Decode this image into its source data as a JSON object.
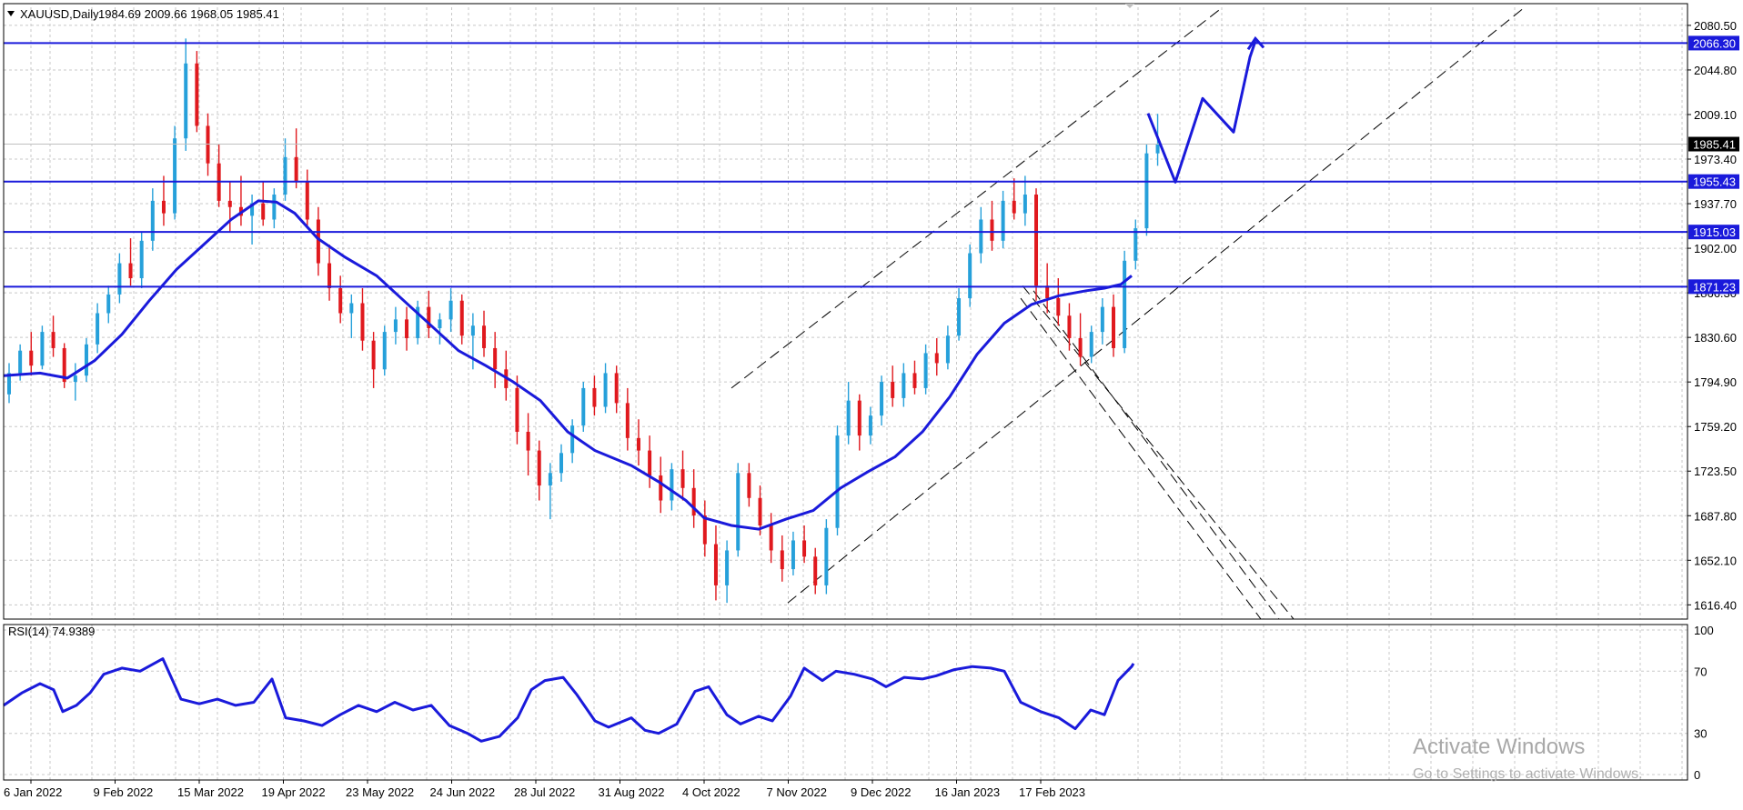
{
  "header": {
    "symbol": "XAUUSD,Daily",
    "ohlc": "1984.69 2009.66 1968.05 1985.41"
  },
  "rsi_header": "RSI(14) 74.9389",
  "watermark": {
    "title": "Activate Windows",
    "subtitle": "Go to Settings to activate Windows."
  },
  "colors": {
    "bull": "#26a0da",
    "bear": "#e0191e",
    "line": "#1a1adb",
    "grid": "#c8c8c8",
    "current_price_bg": "#000000",
    "level_bg": "#1a1adb"
  },
  "chart_data": [
    {
      "type": "candlestick",
      "name": "XAUUSD,Daily",
      "ylim": [
        1605,
        2095
      ],
      "y_ticks": [
        1616.4,
        1652.1,
        1687.8,
        1723.5,
        1759.2,
        1794.9,
        1830.6,
        1866.3,
        1902.0,
        1937.7,
        1973.4,
        2009.1,
        2044.8,
        2080.5
      ],
      "x_ticks": [
        "6 Jan 2022",
        "9 Feb 2022",
        "15 Mar 2022",
        "19 Apr 2022",
        "23 May 2022",
        "24 Jun 2022",
        "28 Jul 2022",
        "31 Aug 2022",
        "4 Oct 2022",
        "7 Nov 2022",
        "9 Dec 2022",
        "16 Jan 2023",
        "17 Feb 2023"
      ],
      "current_price": 1985.41,
      "horizontal_levels": [
        2066.3,
        1955.43,
        1915.03,
        1871.23
      ],
      "ma_path": [
        [
          0,
          1800
        ],
        [
          40,
          1802
        ],
        [
          70,
          1798
        ],
        [
          100,
          1812
        ],
        [
          130,
          1833
        ],
        [
          160,
          1860
        ],
        [
          190,
          1885
        ],
        [
          220,
          1905
        ],
        [
          250,
          1925
        ],
        [
          280,
          1940
        ],
        [
          300,
          1939
        ],
        [
          320,
          1930
        ],
        [
          345,
          1910
        ],
        [
          375,
          1895
        ],
        [
          410,
          1880
        ],
        [
          440,
          1860
        ],
        [
          470,
          1840
        ],
        [
          500,
          1820
        ],
        [
          530,
          1808
        ],
        [
          560,
          1795
        ],
        [
          590,
          1780
        ],
        [
          620,
          1755
        ],
        [
          650,
          1740
        ],
        [
          690,
          1728
        ],
        [
          720,
          1715
        ],
        [
          750,
          1700
        ],
        [
          770,
          1686
        ],
        [
          800,
          1680
        ],
        [
          830,
          1677
        ],
        [
          860,
          1685
        ],
        [
          890,
          1692
        ],
        [
          920,
          1710
        ],
        [
          950,
          1723
        ],
        [
          980,
          1735
        ],
        [
          1010,
          1755
        ],
        [
          1040,
          1783
        ],
        [
          1070,
          1817
        ],
        [
          1100,
          1842
        ],
        [
          1130,
          1857
        ],
        [
          1160,
          1864
        ],
        [
          1190,
          1868
        ],
        [
          1210,
          1870
        ],
        [
          1228,
          1873
        ],
        [
          1240,
          1880
        ]
      ],
      "candles": [
        [
          1785,
          1810,
          1778,
          1802
        ],
        [
          1802,
          1825,
          1796,
          1820
        ],
        [
          1820,
          1835,
          1800,
          1808
        ],
        [
          1808,
          1840,
          1805,
          1835
        ],
        [
          1835,
          1848,
          1815,
          1822
        ],
        [
          1822,
          1826,
          1790,
          1795
        ],
        [
          1795,
          1810,
          1780,
          1800
        ],
        [
          1800,
          1830,
          1795,
          1825
        ],
        [
          1825,
          1858,
          1818,
          1850
        ],
        [
          1850,
          1872,
          1842,
          1865
        ],
        [
          1865,
          1898,
          1858,
          1890
        ],
        [
          1890,
          1910,
          1872,
          1878
        ],
        [
          1878,
          1915,
          1870,
          1908
        ],
        [
          1908,
          1950,
          1900,
          1940
        ],
        [
          1940,
          1960,
          1920,
          1930
        ],
        [
          1930,
          2000,
          1925,
          1990
        ],
        [
          1990,
          2070,
          1980,
          2050
        ],
        [
          2050,
          2060,
          1995,
          2000
        ],
        [
          2000,
          2010,
          1960,
          1970
        ],
        [
          1970,
          1985,
          1935,
          1940
        ],
        [
          1940,
          1955,
          1915,
          1935
        ],
        [
          1935,
          1960,
          1920,
          1928
        ],
        [
          1928,
          1945,
          1905,
          1938
        ],
        [
          1938,
          1955,
          1920,
          1925
        ],
        [
          1925,
          1950,
          1918,
          1945
        ],
        [
          1945,
          1990,
          1940,
          1975
        ],
        [
          1975,
          1998,
          1950,
          1955
        ],
        [
          1955,
          1965,
          1920,
          1925
        ],
        [
          1925,
          1935,
          1880,
          1890
        ],
        [
          1890,
          1905,
          1860,
          1870
        ],
        [
          1870,
          1880,
          1842,
          1850
        ],
        [
          1850,
          1865,
          1830,
          1858
        ],
        [
          1858,
          1870,
          1820,
          1828
        ],
        [
          1828,
          1835,
          1790,
          1805
        ],
        [
          1805,
          1840,
          1800,
          1835
        ],
        [
          1835,
          1855,
          1825,
          1845
        ],
        [
          1845,
          1855,
          1820,
          1830
        ],
        [
          1830,
          1860,
          1825,
          1855
        ],
        [
          1855,
          1868,
          1830,
          1838
        ],
        [
          1838,
          1850,
          1825,
          1845
        ],
        [
          1845,
          1870,
          1835,
          1860
        ],
        [
          1860,
          1865,
          1825,
          1832
        ],
        [
          1832,
          1850,
          1805,
          1840
        ],
        [
          1840,
          1852,
          1815,
          1822
        ],
        [
          1822,
          1835,
          1790,
          1805
        ],
        [
          1805,
          1820,
          1780,
          1790
        ],
        [
          1790,
          1800,
          1745,
          1755
        ],
        [
          1755,
          1770,
          1720,
          1740
        ],
        [
          1740,
          1748,
          1700,
          1712
        ],
        [
          1712,
          1730,
          1685,
          1722
        ],
        [
          1722,
          1745,
          1715,
          1738
        ],
        [
          1738,
          1765,
          1730,
          1760
        ],
        [
          1760,
          1795,
          1755,
          1790
        ],
        [
          1790,
          1800,
          1768,
          1775
        ],
        [
          1775,
          1810,
          1770,
          1802
        ],
        [
          1802,
          1808,
          1770,
          1778
        ],
        [
          1778,
          1790,
          1740,
          1750
        ],
        [
          1750,
          1765,
          1728,
          1740
        ],
        [
          1740,
          1752,
          1710,
          1720
        ],
        [
          1720,
          1735,
          1690,
          1700
        ],
        [
          1700,
          1730,
          1692,
          1725
        ],
        [
          1725,
          1740,
          1700,
          1710
        ],
        [
          1710,
          1725,
          1678,
          1688
        ],
        [
          1688,
          1700,
          1655,
          1665
        ],
        [
          1665,
          1680,
          1620,
          1632
        ],
        [
          1632,
          1668,
          1618,
          1660
        ],
        [
          1660,
          1730,
          1655,
          1722
        ],
        [
          1722,
          1730,
          1695,
          1702
        ],
        [
          1702,
          1712,
          1672,
          1680
        ],
        [
          1680,
          1690,
          1650,
          1660
        ],
        [
          1660,
          1672,
          1635,
          1645
        ],
        [
          1645,
          1675,
          1640,
          1668
        ],
        [
          1668,
          1680,
          1650,
          1655
        ],
        [
          1655,
          1662,
          1625,
          1632
        ],
        [
          1632,
          1685,
          1625,
          1678
        ],
        [
          1678,
          1760,
          1672,
          1752
        ],
        [
          1752,
          1795,
          1745,
          1780
        ],
        [
          1780,
          1785,
          1740,
          1752
        ],
        [
          1752,
          1775,
          1745,
          1768
        ],
        [
          1768,
          1800,
          1760,
          1795
        ],
        [
          1795,
          1808,
          1775,
          1782
        ],
        [
          1782,
          1810,
          1775,
          1802
        ],
        [
          1802,
          1812,
          1785,
          1790
        ],
        [
          1790,
          1825,
          1785,
          1818
        ],
        [
          1818,
          1830,
          1800,
          1810
        ],
        [
          1810,
          1840,
          1805,
          1832
        ],
        [
          1832,
          1870,
          1828,
          1862
        ],
        [
          1862,
          1905,
          1855,
          1898
        ],
        [
          1898,
          1935,
          1890,
          1925
        ],
        [
          1925,
          1940,
          1900,
          1908
        ],
        [
          1908,
          1948,
          1902,
          1940
        ],
        [
          1940,
          1958,
          1925,
          1930
        ],
        [
          1930,
          1960,
          1920,
          1945
        ],
        [
          1945,
          1950,
          1860,
          1872
        ],
        [
          1872,
          1890,
          1850,
          1862
        ],
        [
          1862,
          1878,
          1840,
          1848
        ],
        [
          1848,
          1858,
          1820,
          1830
        ],
        [
          1830,
          1850,
          1808,
          1815
        ],
        [
          1815,
          1840,
          1810,
          1835
        ],
        [
          1835,
          1862,
          1825,
          1855
        ],
        [
          1855,
          1865,
          1815,
          1822
        ],
        [
          1822,
          1900,
          1818,
          1892
        ],
        [
          1892,
          1925,
          1885,
          1918
        ],
        [
          1918,
          1985,
          1912,
          1978
        ],
        [
          1978,
          2009.66,
          1968.05,
          1985.41
        ]
      ],
      "annotations": {
        "upper_channel": [
          [
            800,
            1790
          ],
          [
            1340,
            2095
          ]
        ],
        "lower_channel": [
          [
            862,
            1618
          ],
          [
            1672,
            2095
          ]
        ],
        "down_channel_a": [
          [
            1120,
            1872
          ],
          [
            1418,
            1605
          ]
        ],
        "down_channel_b": [
          [
            1132,
            1868
          ],
          [
            1402,
            1605
          ]
        ],
        "down_channel_c": [
          [
            1118,
            1862
          ],
          [
            1382,
            1605
          ]
        ],
        "projection": [
          [
            1258,
            2010
          ],
          [
            1288,
            1955
          ],
          [
            1318,
            2022
          ],
          [
            1352,
            1995
          ],
          [
            1370,
            2055
          ],
          [
            1376,
            2068
          ]
        ],
        "arrow_tip": [
          1376,
          2070
        ]
      }
    },
    {
      "type": "line",
      "name": "RSI(14)",
      "ylim": [
        0,
        100
      ],
      "y_ticks": [
        0,
        30,
        70,
        100
      ],
      "current_value": 74.9389,
      "series": [
        {
          "values": [
            [
              0,
              48
            ],
            [
              20,
              56
            ],
            [
              40,
              62
            ],
            [
              55,
              58
            ],
            [
              65,
              44
            ],
            [
              80,
              48
            ],
            [
              95,
              56
            ],
            [
              110,
              68
            ],
            [
              130,
              72
            ],
            [
              150,
              70
            ],
            [
              175,
              78
            ],
            [
              195,
              52
            ],
            [
              215,
              49
            ],
            [
              235,
              52
            ],
            [
              255,
              48
            ],
            [
              275,
              50
            ],
            [
              295,
              65
            ],
            [
              310,
              40
            ],
            [
              330,
              38
            ],
            [
              350,
              35
            ],
            [
              370,
              42
            ],
            [
              390,
              48
            ],
            [
              410,
              44
            ],
            [
              430,
              50
            ],
            [
              450,
              45
            ],
            [
              470,
              48
            ],
            [
              490,
              35
            ],
            [
              510,
              30
            ],
            [
              525,
              25
            ],
            [
              545,
              28
            ],
            [
              565,
              40
            ],
            [
              580,
              58
            ],
            [
              595,
              64
            ],
            [
              615,
              66
            ],
            [
              630,
              55
            ],
            [
              650,
              38
            ],
            [
              665,
              34
            ],
            [
              690,
              40
            ],
            [
              705,
              32
            ],
            [
              720,
              30
            ],
            [
              740,
              36
            ],
            [
              760,
              57
            ],
            [
              775,
              60
            ],
            [
              795,
              42
            ],
            [
              810,
              36
            ],
            [
              830,
              41
            ],
            [
              845,
              38
            ],
            [
              865,
              54
            ],
            [
              880,
              72
            ],
            [
              900,
              64
            ],
            [
              915,
              70
            ],
            [
              935,
              68
            ],
            [
              955,
              65
            ],
            [
              970,
              60
            ],
            [
              990,
              66
            ],
            [
              1010,
              65
            ],
            [
              1025,
              67
            ],
            [
              1045,
              71
            ],
            [
              1065,
              73
            ],
            [
              1085,
              72
            ],
            [
              1100,
              70
            ],
            [
              1118,
              50
            ],
            [
              1140,
              44
            ],
            [
              1160,
              40
            ],
            [
              1178,
              33
            ],
            [
              1195,
              45
            ],
            [
              1210,
              42
            ],
            [
              1225,
              64
            ],
            [
              1240,
              73
            ],
            [
              1242,
              74.9
            ]
          ]
        }
      ]
    }
  ]
}
